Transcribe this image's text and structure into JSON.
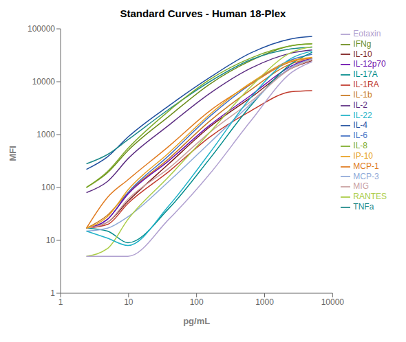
{
  "chart_data": {
    "type": "line",
    "title": "Standard Curves - Human 18-Plex",
    "xlabel": "pg/mL",
    "ylabel": "MFI",
    "log": true,
    "grid": false,
    "legend": "right",
    "xlim": [
      1,
      10000
    ],
    "ylim": [
      1,
      100000
    ],
    "xticks": [
      1,
      10,
      100,
      1000,
      10000
    ],
    "yticks": [
      1,
      10,
      100,
      1000,
      10000,
      100000
    ],
    "x": [
      2.4,
      4.9,
      9.8,
      39,
      156,
      625,
      2500,
      5000
    ],
    "series": [
      {
        "name": "IL-4",
        "color": "#1f4e9e",
        "values": [
          220,
          380,
          900,
          3500,
          12000,
          35000,
          65000,
          72000
        ]
      },
      {
        "name": "IL-10",
        "color": "#7b1a1a",
        "values": [
          17,
          22,
          55,
          280,
          1400,
          5000,
          18000,
          25000
        ]
      },
      {
        "name": "IFNg",
        "color": "#6b8c1a",
        "values": [
          100,
          190,
          500,
          2200,
          9000,
          25000,
          48000,
          52000
        ]
      },
      {
        "name": "IL-2",
        "color": "#5c2d82",
        "values": [
          80,
          130,
          350,
          1500,
          6000,
          18000,
          35000,
          40000
        ]
      },
      {
        "name": "TNFa",
        "color": "#1e8a8a",
        "values": [
          280,
          420,
          800,
          3000,
          10000,
          26000,
          42000,
          45000
        ]
      },
      {
        "name": "IL-1b",
        "color": "#c87820",
        "values": [
          17,
          30,
          80,
          350,
          1800,
          7000,
          22000,
          27000
        ]
      },
      {
        "name": "IL-6",
        "color": "#4472c4",
        "values": [
          17,
          25,
          80,
          400,
          2200,
          9000,
          26000,
          33000
        ]
      },
      {
        "name": "IL-1RA",
        "color": "#c0392b",
        "values": [
          17,
          20,
          50,
          200,
          900,
          2800,
          6500,
          6800
        ]
      },
      {
        "name": "IL-8",
        "color": "#7dab29",
        "values": [
          100,
          200,
          550,
          2800,
          11000,
          28000,
          48000,
          52000
        ]
      },
      {
        "name": "IL-12p70",
        "color": "#6a0dad",
        "values": [
          17,
          25,
          75,
          320,
          1500,
          5500,
          20000,
          28000
        ]
      },
      {
        "name": "IL-17A",
        "color": "#008b8b",
        "values": [
          17,
          15,
          9,
          40,
          350,
          3500,
          22000,
          36000
        ]
      },
      {
        "name": "MCP-1",
        "color": "#e07b20",
        "values": [
          17,
          65,
          140,
          600,
          2800,
          9000,
          24000,
          28000
        ]
      },
      {
        "name": "MCP-3",
        "color": "#8ea9d8",
        "values": [
          15,
          17,
          28,
          130,
          700,
          3800,
          19000,
          27000
        ]
      },
      {
        "name": "MIG",
        "color": "#c9a0a0",
        "values": [
          17,
          22,
          60,
          230,
          1100,
          4200,
          18000,
          26000
        ]
      },
      {
        "name": "RANTES",
        "color": "#aacc44",
        "values": [
          5,
          7,
          25,
          160,
          1100,
          8000,
          36000,
          46000
        ]
      },
      {
        "name": "Eotaxin",
        "color": "#b0a0d0",
        "values": [
          5,
          5,
          5,
          25,
          180,
          1800,
          15000,
          24000
        ]
      },
      {
        "name": "IL-22",
        "color": "#20b2c8",
        "values": [
          15,
          11,
          8,
          45,
          450,
          5000,
          28000,
          38000
        ]
      },
      {
        "name": "IP-10",
        "color": "#e8a020",
        "values": [
          17,
          28,
          90,
          450,
          2400,
          9500,
          25000,
          29000
        ]
      }
    ]
  }
}
